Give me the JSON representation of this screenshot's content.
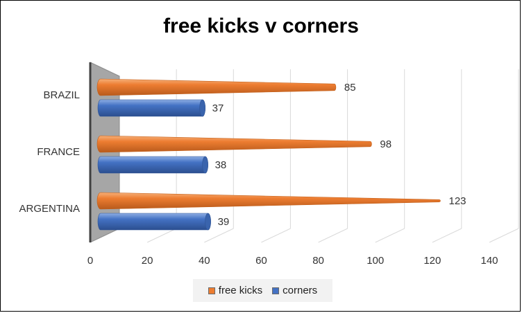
{
  "chart_data": {
    "type": "bar",
    "orientation": "horizontal",
    "style": "3d-cone",
    "title": "free kicks v corners",
    "categories": [
      "ARGENTINA",
      "FRANCE",
      "BRAZIL"
    ],
    "series": [
      {
        "name": "free kicks",
        "values": [
          123,
          98,
          85
        ],
        "color": "#ed7d31"
      },
      {
        "name": "corners",
        "values": [
          39,
          38,
          37
        ],
        "color": "#4472c4"
      }
    ],
    "xlim": [
      0,
      140
    ],
    "xticks": [
      "0",
      "20",
      "40",
      "60",
      "80",
      "100",
      "120",
      "140"
    ],
    "grid": true,
    "legend": "bottom"
  }
}
